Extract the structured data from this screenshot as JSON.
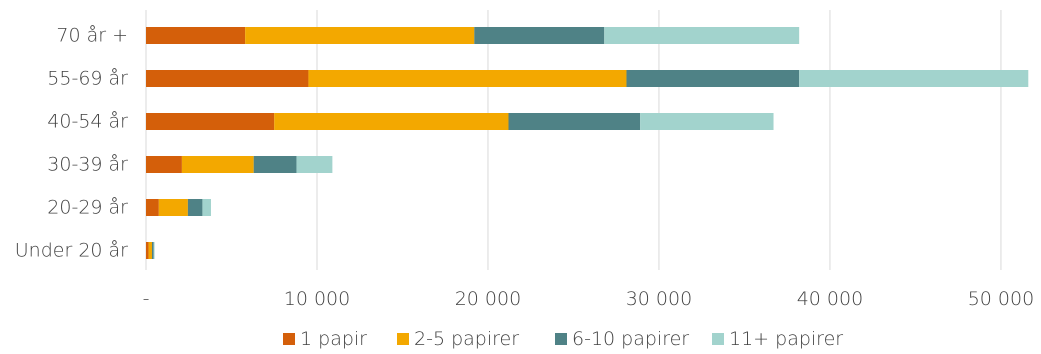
{
  "chart_data": {
    "type": "bar",
    "orientation": "horizontal",
    "stacked": true,
    "categories": [
      "70 år +",
      "55-69 år",
      "40-54 år",
      "30-39 år",
      "20-29 år",
      "Under 20 år"
    ],
    "series": [
      {
        "name": "1 papir",
        "color": "#d45f0a",
        "values": [
          5800,
          9500,
          7500,
          2100,
          750,
          150
        ]
      },
      {
        "name": "2-5 papirer",
        "color": "#f3a800",
        "values": [
          13400,
          18600,
          13700,
          4200,
          1700,
          200
        ]
      },
      {
        "name": "6-10 papirer",
        "color": "#4f8286",
        "values": [
          7600,
          10100,
          7700,
          2500,
          850,
          100
        ]
      },
      {
        "name": "11+ papirer",
        "color": "#a2d3cd",
        "values": [
          11400,
          13400,
          7800,
          2100,
          500,
          50
        ]
      }
    ],
    "xlim": [
      0,
      51700
    ],
    "xticks": [
      0,
      10000,
      20000,
      30000,
      40000,
      50000
    ],
    "xtick_labels": [
      "-",
      "10 000",
      "20 000",
      "30 000",
      "40 000",
      "50 000"
    ],
    "grid": "vertical",
    "legend": "bottom"
  }
}
